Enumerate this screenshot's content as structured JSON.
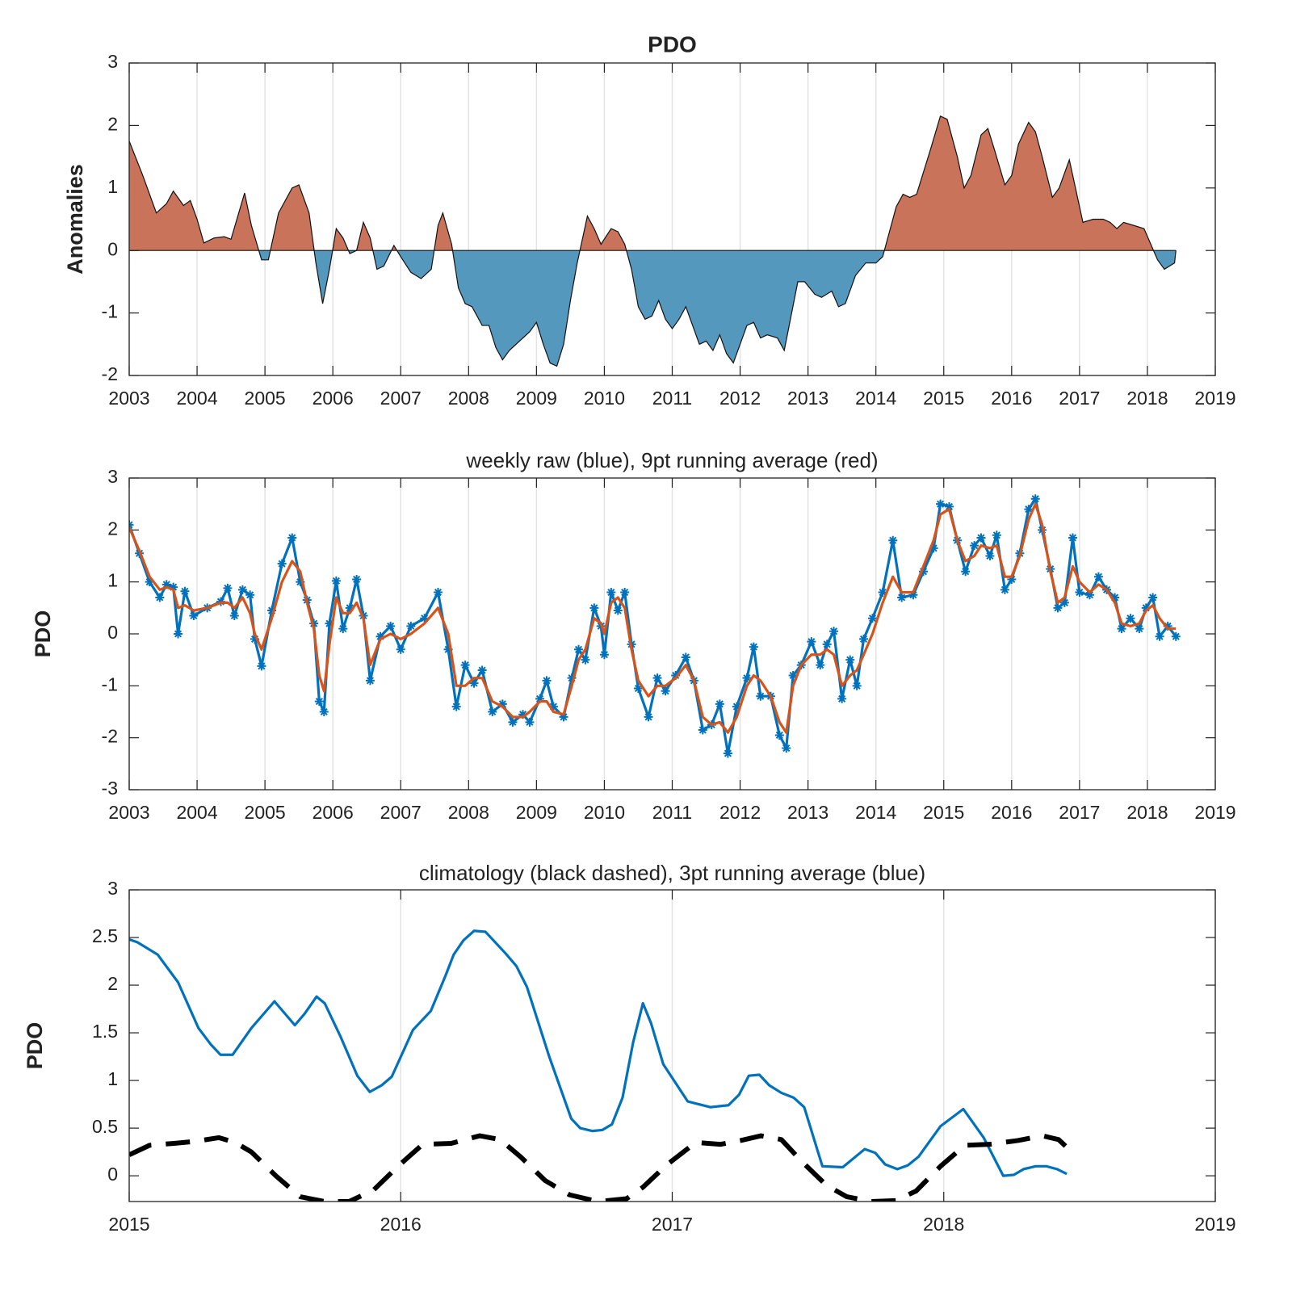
{
  "chart_data": [
    {
      "type": "area",
      "title": "PDO",
      "ylabel": "Anomalies",
      "x": [
        2003.0,
        2003.2,
        2003.4,
        2003.55,
        2003.65,
        2003.8,
        2003.9,
        2004.0,
        2004.1,
        2004.25,
        2004.4,
        2004.5,
        2004.7,
        2004.8,
        2004.95,
        2005.05,
        2005.2,
        2005.4,
        2005.5,
        2005.65,
        2005.75,
        2005.85,
        2005.95,
        2006.05,
        2006.15,
        2006.25,
        2006.35,
        2006.45,
        2006.55,
        2006.65,
        2006.75,
        2006.9,
        2007.0,
        2007.15,
        2007.3,
        2007.45,
        2007.55,
        2007.62,
        2007.75,
        2007.85,
        2007.95,
        2008.05,
        2008.2,
        2008.3,
        2008.4,
        2008.5,
        2008.6,
        2008.75,
        2008.9,
        2009.0,
        2009.1,
        2009.2,
        2009.3,
        2009.4,
        2009.5,
        2009.6,
        2009.7,
        2009.75,
        2009.85,
        2009.95,
        2010.1,
        2010.2,
        2010.3,
        2010.4,
        2010.5,
        2010.6,
        2010.7,
        2010.8,
        2010.9,
        2011.0,
        2011.1,
        2011.2,
        2011.3,
        2011.4,
        2011.5,
        2011.6,
        2011.7,
        2011.8,
        2011.9,
        2012.0,
        2012.1,
        2012.2,
        2012.3,
        2012.4,
        2012.55,
        2012.65,
        2012.75,
        2012.85,
        2012.95,
        2013.1,
        2013.2,
        2013.35,
        2013.45,
        2013.55,
        2013.7,
        2013.85,
        2014.0,
        2014.1,
        2014.2,
        2014.3,
        2014.4,
        2014.5,
        2014.6,
        2014.8,
        2014.95,
        2015.05,
        2015.2,
        2015.3,
        2015.4,
        2015.55,
        2015.65,
        2015.75,
        2015.9,
        2016.0,
        2016.1,
        2016.25,
        2016.35,
        2016.45,
        2016.6,
        2016.7,
        2016.85,
        2016.95,
        2017.05,
        2017.2,
        2017.35,
        2017.45,
        2017.55,
        2017.65,
        2017.8,
        2017.95,
        2018.05,
        2018.15,
        2018.25,
        2018.4,
        2018.42
      ],
      "series": [
        {
          "values": [
            1.75,
            1.2,
            0.6,
            0.75,
            0.95,
            0.72,
            0.8,
            0.5,
            0.12,
            0.2,
            0.22,
            0.18,
            0.92,
            0.4,
            -0.15,
            -0.15,
            0.6,
            1.0,
            1.05,
            0.6,
            -0.2,
            -0.85,
            -0.3,
            0.35,
            0.2,
            -0.05,
            0.0,
            0.45,
            0.2,
            -0.3,
            -0.25,
            0.08,
            -0.1,
            -0.35,
            -0.45,
            -0.3,
            0.4,
            0.6,
            0.1,
            -0.6,
            -0.85,
            -0.9,
            -1.2,
            -1.2,
            -1.55,
            -1.75,
            -1.6,
            -1.45,
            -1.3,
            -1.15,
            -1.5,
            -1.8,
            -1.85,
            -1.5,
            -0.8,
            -0.2,
            0.3,
            0.55,
            0.35,
            0.1,
            0.35,
            0.3,
            0.1,
            -0.3,
            -0.9,
            -1.1,
            -1.05,
            -0.8,
            -1.1,
            -1.25,
            -1.1,
            -0.9,
            -1.2,
            -1.5,
            -1.45,
            -1.6,
            -1.35,
            -1.65,
            -1.8,
            -1.5,
            -1.2,
            -1.15,
            -1.4,
            -1.35,
            -1.4,
            -1.6,
            -1.05,
            -0.5,
            -0.5,
            -0.7,
            -0.75,
            -0.65,
            -0.9,
            -0.85,
            -0.4,
            -0.2,
            -0.2,
            -0.1,
            0.3,
            0.7,
            0.9,
            0.85,
            0.9,
            1.6,
            2.15,
            2.1,
            1.5,
            1.0,
            1.2,
            1.85,
            1.95,
            1.6,
            1.05,
            1.2,
            1.7,
            2.05,
            1.9,
            1.5,
            0.85,
            1.0,
            1.45,
            0.95,
            0.45,
            0.5,
            0.5,
            0.45,
            0.35,
            0.45,
            0.4,
            0.35,
            0.1,
            -0.15,
            -0.3,
            -0.2,
            0
          ]
        }
      ],
      "positive_color": "#c8735a",
      "negative_color": "#5499bd",
      "xlim": [
        2003,
        2019
      ],
      "xticks": [
        2003,
        2004,
        2005,
        2006,
        2007,
        2008,
        2009,
        2010,
        2011,
        2012,
        2013,
        2014,
        2015,
        2016,
        2017,
        2018,
        2019
      ],
      "ylim": [
        -2,
        3
      ],
      "yticks": [
        -2,
        -1,
        0,
        1,
        2,
        3
      ],
      "grid": "x"
    },
    {
      "type": "line",
      "title": "weekly raw (blue), 9pt running average (red)",
      "ylabel": "PDO",
      "x": [
        2003.0,
        2003.15,
        2003.3,
        2003.45,
        2003.55,
        2003.65,
        2003.72,
        2003.82,
        2003.95,
        2004.15,
        2004.35,
        2004.45,
        2004.55,
        2004.67,
        2004.78,
        2004.85,
        2004.95,
        2005.1,
        2005.25,
        2005.4,
        2005.52,
        2005.62,
        2005.72,
        2005.8,
        2005.87,
        2005.95,
        2006.05,
        2006.15,
        2006.25,
        2006.35,
        2006.45,
        2006.55,
        2006.7,
        2006.85,
        2007.0,
        2007.15,
        2007.35,
        2007.55,
        2007.7,
        2007.82,
        2007.95,
        2008.08,
        2008.2,
        2008.35,
        2008.5,
        2008.65,
        2008.8,
        2008.9,
        2009.05,
        2009.15,
        2009.25,
        2009.4,
        2009.52,
        2009.62,
        2009.72,
        2009.85,
        2009.95,
        2010.0,
        2010.1,
        2010.2,
        2010.3,
        2010.4,
        2010.5,
        2010.65,
        2010.78,
        2010.9,
        2011.05,
        2011.2,
        2011.32,
        2011.45,
        2011.58,
        2011.7,
        2011.82,
        2011.95,
        2012.1,
        2012.2,
        2012.3,
        2012.45,
        2012.58,
        2012.68,
        2012.78,
        2012.9,
        2013.05,
        2013.18,
        2013.28,
        2013.38,
        2013.5,
        2013.62,
        2013.72,
        2013.82,
        2013.95,
        2014.1,
        2014.25,
        2014.38,
        2014.55,
        2014.7,
        2014.85,
        2014.95,
        2015.08,
        2015.2,
        2015.32,
        2015.45,
        2015.55,
        2015.68,
        2015.78,
        2015.9,
        2016.0,
        2016.12,
        2016.25,
        2016.35,
        2016.45,
        2016.57,
        2016.68,
        2016.78,
        2016.9,
        2017.0,
        2017.15,
        2017.28,
        2017.4,
        2017.52,
        2017.62,
        2017.75,
        2017.88,
        2017.98,
        2018.08,
        2018.18,
        2018.3,
        2018.42
      ],
      "series": [
        {
          "name": "weekly raw",
          "color": "#0072bd",
          "marker": "asterisk",
          "values": [
            2.1,
            1.55,
            1.0,
            0.7,
            0.95,
            0.9,
            0.0,
            0.82,
            0.35,
            0.5,
            0.62,
            0.88,
            0.35,
            0.85,
            0.75,
            -0.1,
            -0.62,
            0.45,
            1.35,
            1.85,
            1.0,
            0.65,
            0.2,
            -1.3,
            -1.5,
            0.2,
            1.02,
            0.1,
            0.5,
            1.05,
            0.35,
            -0.9,
            -0.05,
            0.15,
            -0.3,
            0.15,
            0.3,
            0.8,
            -0.3,
            -1.4,
            -0.6,
            -0.95,
            -0.7,
            -1.5,
            -1.35,
            -1.7,
            -1.55,
            -1.7,
            -1.25,
            -0.9,
            -1.4,
            -1.6,
            -0.85,
            -0.3,
            -0.5,
            0.5,
            0.15,
            -0.4,
            0.8,
            0.45,
            0.8,
            -0.2,
            -1.05,
            -1.6,
            -0.85,
            -1.1,
            -0.8,
            -0.45,
            -0.9,
            -1.85,
            -1.75,
            -1.35,
            -2.3,
            -1.4,
            -0.85,
            -0.25,
            -1.2,
            -1.2,
            -1.95,
            -2.2,
            -0.8,
            -0.6,
            -0.15,
            -0.6,
            -0.2,
            0.05,
            -1.25,
            -0.5,
            -1.0,
            -0.1,
            0.3,
            0.8,
            1.8,
            0.7,
            0.75,
            1.2,
            1.65,
            2.5,
            2.45,
            1.8,
            1.2,
            1.7,
            1.85,
            1.5,
            1.9,
            0.85,
            1.05,
            1.55,
            2.4,
            2.6,
            2.0,
            1.25,
            0.5,
            0.6,
            1.85,
            0.8,
            0.75,
            1.1,
            0.85,
            0.7,
            0.1,
            0.3,
            0.1,
            0.5,
            0.7,
            -0.05,
            0.15,
            -0.05
          ]
        },
        {
          "name": "9pt running average",
          "color": "#d95319",
          "values": [
            2.05,
            1.6,
            1.1,
            0.85,
            0.9,
            0.85,
            0.5,
            0.55,
            0.45,
            0.5,
            0.6,
            0.6,
            0.5,
            0.7,
            0.4,
            0.0,
            -0.3,
            0.3,
            1.0,
            1.4,
            1.2,
            0.6,
            0.1,
            -0.8,
            -1.1,
            -0.2,
            0.7,
            0.4,
            0.4,
            0.6,
            0.3,
            -0.6,
            -0.1,
            0.0,
            -0.1,
            0.0,
            0.2,
            0.5,
            0.0,
            -1.0,
            -1.0,
            -0.85,
            -0.85,
            -1.3,
            -1.4,
            -1.6,
            -1.6,
            -1.5,
            -1.3,
            -1.3,
            -1.5,
            -1.55,
            -1.0,
            -0.5,
            -0.3,
            0.3,
            0.2,
            0.0,
            0.6,
            0.7,
            0.5,
            -0.3,
            -0.9,
            -1.2,
            -1.0,
            -1.0,
            -0.85,
            -0.6,
            -0.9,
            -1.6,
            -1.75,
            -1.7,
            -1.9,
            -1.6,
            -1.0,
            -0.8,
            -0.9,
            -1.2,
            -1.7,
            -1.9,
            -1.0,
            -0.6,
            -0.4,
            -0.4,
            -0.3,
            -0.4,
            -1.0,
            -0.8,
            -0.7,
            -0.4,
            0.0,
            0.6,
            1.1,
            0.8,
            0.8,
            1.3,
            1.8,
            2.3,
            2.4,
            1.8,
            1.4,
            1.5,
            1.7,
            1.65,
            1.7,
            1.1,
            1.1,
            1.5,
            2.2,
            2.5,
            2.1,
            1.2,
            0.6,
            0.7,
            1.3,
            1.0,
            0.8,
            0.95,
            0.85,
            0.6,
            0.2,
            0.15,
            0.2,
            0.45,
            0.55,
            0.3,
            0.1,
            0.1
          ]
        }
      ],
      "xlim": [
        2003,
        2019
      ],
      "xticks": [
        2003,
        2004,
        2005,
        2006,
        2007,
        2008,
        2009,
        2010,
        2011,
        2012,
        2013,
        2014,
        2015,
        2016,
        2017,
        2018,
        2019
      ],
      "ylim": [
        -3,
        3
      ],
      "yticks": [
        -3,
        -2,
        -1,
        0,
        1,
        2,
        3
      ],
      "grid": "x"
    },
    {
      "type": "line",
      "title": "climatology (black dashed), 3pt running average (blue)",
      "ylabel": "PDO",
      "series": [
        {
          "name": "3pt running average",
          "color": "#0072bd",
          "x": [
            2015.0,
            2015.03,
            2015.105,
            2015.18,
            2015.255,
            2015.3,
            2015.336,
            2015.381,
            2015.45,
            2015.535,
            2015.61,
            2015.646,
            2015.69,
            2015.72,
            2015.78,
            2015.84,
            2015.886,
            2015.93,
            2015.967,
            2016.045,
            2016.111,
            2016.165,
            2016.195,
            2016.231,
            2016.27,
            2016.312,
            2016.387,
            2016.426,
            2016.465,
            2016.547,
            2016.628,
            2016.661,
            2016.706,
            2016.742,
            2016.778,
            2016.817,
            2016.856,
            2016.892,
            2016.922,
            2016.967,
            2017.057,
            2017.141,
            2017.207,
            2017.246,
            2017.282,
            2017.321,
            2017.357,
            2017.402,
            2017.447,
            2017.486,
            2017.553,
            2017.628,
            2017.709,
            2017.748,
            2017.784,
            2017.829,
            2017.868,
            2017.907,
            2017.988,
            2018.072,
            2018.147,
            2018.219,
            2018.258,
            2018.294,
            2018.339,
            2018.378,
            2018.417,
            2018.453
          ],
          "values": [
            2.48,
            2.45,
            2.32,
            2.03,
            1.55,
            1.38,
            1.27,
            1.27,
            1.55,
            1.83,
            1.58,
            1.7,
            1.88,
            1.81,
            1.45,
            1.05,
            0.88,
            0.95,
            1.04,
            1.53,
            1.73,
            2.1,
            2.32,
            2.47,
            2.57,
            2.56,
            2.33,
            2.2,
            1.98,
            1.25,
            0.6,
            0.5,
            0.47,
            0.48,
            0.54,
            0.82,
            1.4,
            1.81,
            1.6,
            1.17,
            0.78,
            0.72,
            0.74,
            0.85,
            1.05,
            1.06,
            0.95,
            0.87,
            0.82,
            0.72,
            0.1,
            0.09,
            0.28,
            0.24,
            0.12,
            0.07,
            0.11,
            0.2,
            0.52,
            0.7,
            0.4,
            0.0,
            0.01,
            0.07,
            0.1,
            0.1,
            0.07,
            0.02
          ]
        },
        {
          "name": "climatology",
          "color": "#000000",
          "dashed": true,
          "x": [
            2015.0,
            2015.075,
            2015.165,
            2015.24,
            2015.33,
            2015.39,
            2015.45,
            2015.54,
            2015.63,
            2015.72,
            2015.81,
            2015.9,
            2015.99,
            2016.081,
            2016.186,
            2016.291,
            2016.366,
            2016.441,
            2016.532,
            2016.622,
            2016.727,
            2016.832,
            2016.892,
            2016.982,
            2017.087,
            2017.177,
            2017.252,
            2017.327,
            2017.402,
            2017.477,
            2017.568,
            2017.643,
            2017.733,
            2017.823,
            2017.898,
            2017.988,
            2018.078,
            2018.168,
            2018.273,
            2018.363,
            2018.423,
            2018.483
          ],
          "values": [
            0.22,
            0.32,
            0.34,
            0.36,
            0.4,
            0.35,
            0.25,
            0.0,
            -0.22,
            -0.27,
            -0.27,
            -0.15,
            0.1,
            0.33,
            0.34,
            0.42,
            0.38,
            0.2,
            -0.05,
            -0.2,
            -0.27,
            -0.24,
            -0.12,
            0.12,
            0.35,
            0.33,
            0.37,
            0.42,
            0.38,
            0.15,
            -0.1,
            -0.22,
            -0.27,
            -0.26,
            -0.16,
            0.1,
            0.32,
            0.33,
            0.37,
            0.42,
            0.38,
            0.22
          ]
        }
      ],
      "xlim": [
        2015,
        2019
      ],
      "xticks": [
        2015,
        2016,
        2017,
        2018,
        2019
      ],
      "ylim": [
        -0.27,
        3
      ],
      "yticks": [
        0,
        0.5,
        1,
        1.5,
        2,
        2.5,
        3
      ],
      "grid": "x"
    }
  ]
}
